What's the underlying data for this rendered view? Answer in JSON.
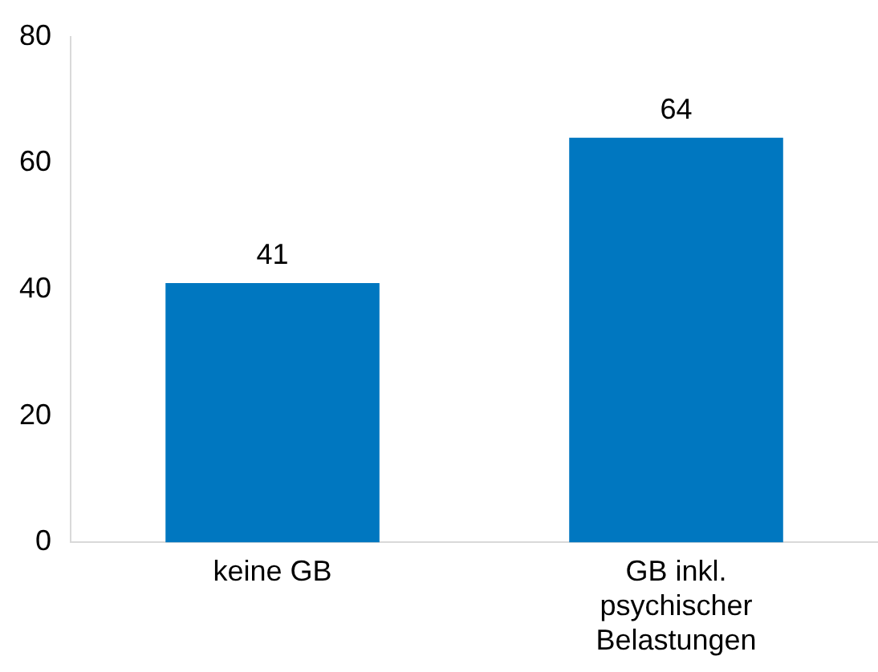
{
  "chart_data": {
    "type": "bar",
    "categories": [
      "keine GB",
      "GB inkl. psychischer Belastungen"
    ],
    "values": [
      41,
      64
    ],
    "color": "#0077c0",
    "ylim": [
      0,
      80
    ],
    "yticks": [
      0,
      20,
      40,
      60,
      80
    ],
    "grid": false,
    "legend": false,
    "data_labels": true
  }
}
